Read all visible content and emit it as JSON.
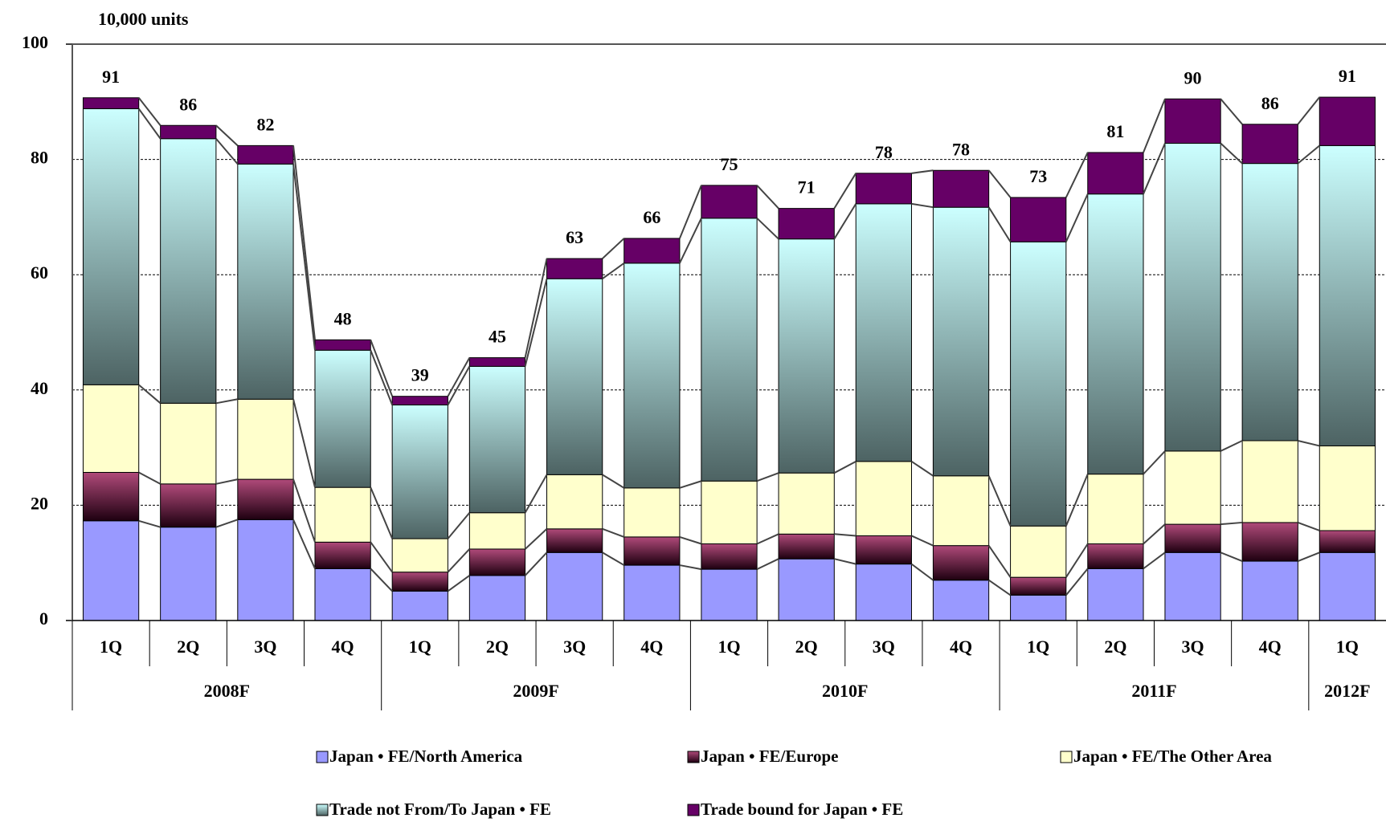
{
  "chart_data": {
    "type": "stacked-bar",
    "ylabel": "10,000 units",
    "groups": [
      {
        "label": "2008F",
        "categories": [
          "1Q",
          "2Q",
          "3Q",
          "4Q"
        ]
      },
      {
        "label": "2009F",
        "categories": [
          "1Q",
          "2Q",
          "3Q",
          "4Q"
        ]
      },
      {
        "label": "2010F",
        "categories": [
          "1Q",
          "2Q",
          "3Q",
          "4Q"
        ]
      },
      {
        "label": "2011F",
        "categories": [
          "1Q",
          "2Q",
          "3Q",
          "4Q"
        ]
      },
      {
        "label": "2012F",
        "categories": [
          "1Q"
        ]
      }
    ],
    "series": [
      {
        "name": "Japan • FE/North America",
        "color": "#9999ff",
        "values": [
          17.3,
          16.2,
          17.5,
          9.0,
          5.1,
          7.8,
          11.8,
          9.6,
          8.9,
          10.7,
          9.8,
          7.0,
          4.4,
          9.0,
          11.8,
          10.3,
          11.8
        ]
      },
      {
        "name": "Japan • FE/Europe",
        "color": "#993366",
        "gradient": [
          "#b04a7a",
          "#1e0010"
        ],
        "values": [
          8.4,
          7.5,
          7.0,
          4.6,
          3.3,
          4.6,
          4.1,
          4.9,
          4.4,
          4.3,
          4.9,
          6.0,
          3.1,
          4.3,
          4.9,
          6.7,
          3.8
        ]
      },
      {
        "name": "Japan • FE/The Other Area",
        "color": "#ffffcc",
        "values": [
          15.2,
          14.0,
          13.9,
          9.5,
          5.8,
          6.3,
          9.4,
          8.5,
          10.9,
          10.6,
          12.9,
          12.1,
          8.9,
          12.1,
          12.7,
          14.2,
          14.7
        ]
      },
      {
        "name": "Trade not From/To Japan • FE",
        "color": "#99cccc",
        "gradient": [
          "#ccffff",
          "#4d6363"
        ],
        "values": [
          47.9,
          45.9,
          40.8,
          23.8,
          23.2,
          25.4,
          34.0,
          39.0,
          45.6,
          40.6,
          44.7,
          46.6,
          49.3,
          48.6,
          53.4,
          48.1,
          52.1
        ]
      },
      {
        "name": "Trade bound for Japan • FE",
        "color": "#660066",
        "values": [
          1.9,
          2.3,
          3.2,
          1.8,
          1.5,
          1.5,
          3.5,
          4.3,
          5.7,
          5.3,
          5.3,
          6.4,
          7.7,
          7.2,
          7.7,
          6.8,
          8.4
        ]
      }
    ],
    "totals": [
      91,
      86,
      82,
      48,
      39,
      45,
      63,
      66,
      75,
      71,
      78,
      78,
      73,
      81,
      90,
      86,
      91
    ],
    "ylim": [
      0,
      100
    ],
    "yticks": [
      0,
      20,
      40,
      60,
      80,
      100
    ],
    "grid": true
  }
}
